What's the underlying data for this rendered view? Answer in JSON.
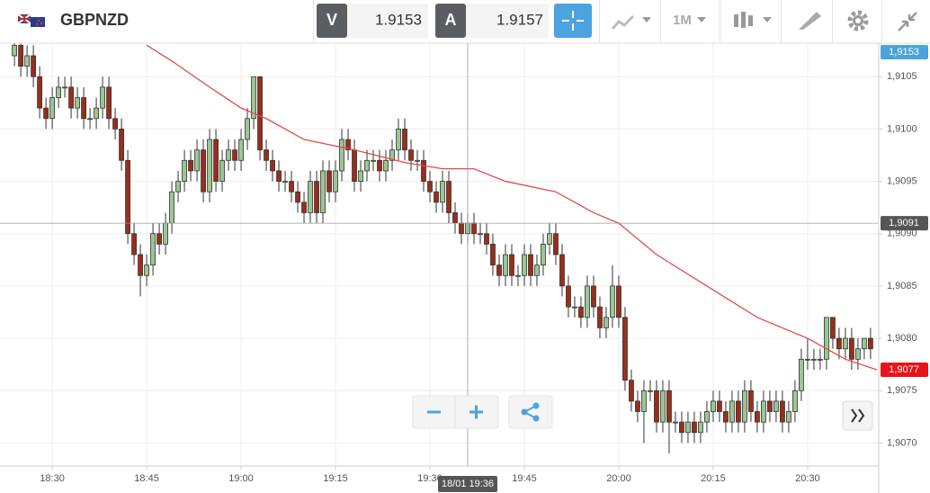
{
  "header": {
    "symbol": "GBPNZD",
    "bid_label": "V",
    "bid": "1.9153",
    "ask_label": "A",
    "ask": "1.9157",
    "timeframe": "1M"
  },
  "chart_data": {
    "type": "candlestick",
    "up_color": "#9cc594",
    "down_color": "#9a2e1c",
    "x": [
      1104,
      1105,
      1106,
      1107,
      1108,
      1109,
      1110,
      1111,
      1112,
      1113,
      1114,
      1115,
      1116,
      1117,
      1118,
      1119,
      1120,
      1121,
      1122,
      1123,
      1124,
      1125,
      1126,
      1127,
      1128,
      1129,
      1130,
      1131,
      1132,
      1133,
      1134,
      1135,
      1136,
      1137,
      1138,
      1139,
      1140,
      1141,
      1142,
      1143,
      1144,
      1145,
      1146,
      1147,
      1148,
      1149,
      1150,
      1151,
      1152,
      1153,
      1154,
      1155,
      1156,
      1157,
      1158,
      1159,
      1160,
      1161,
      1162,
      1163,
      1164,
      1165,
      1166,
      1167,
      1168,
      1169,
      1170,
      1171,
      1172,
      1173,
      1174,
      1175,
      1176,
      1177,
      1178,
      1179,
      1180,
      1181,
      1182,
      1183,
      1184,
      1185,
      1186,
      1187,
      1188,
      1189,
      1190,
      1191,
      1192,
      1193,
      1194,
      1195,
      1196,
      1197,
      1198,
      1199,
      1200,
      1201,
      1202,
      1203,
      1204,
      1205,
      1206,
      1207,
      1208,
      1209,
      1210,
      1211,
      1212,
      1213,
      1214,
      1215,
      1216,
      1217,
      1218,
      1219,
      1220,
      1221,
      1222,
      1223,
      1224,
      1225,
      1226,
      1227,
      1228,
      1229,
      1230,
      1231,
      1232,
      1233,
      1234,
      1235,
      1236,
      1237,
      1238,
      1239,
      1240
    ],
    "candles": [
      [
        1.9107,
        1.9109,
        1.9106,
        1.9108
      ],
      [
        1.9108,
        1.9109,
        1.9105,
        1.9106
      ],
      [
        1.9106,
        1.9108,
        1.9105,
        1.9107
      ],
      [
        1.9107,
        1.9108,
        1.9104,
        1.9105
      ],
      [
        1.9105,
        1.9106,
        1.9101,
        1.9102
      ],
      [
        1.9102,
        1.9103,
        1.91,
        1.9101
      ],
      [
        1.9101,
        1.9104,
        1.91,
        1.9103
      ],
      [
        1.9103,
        1.9105,
        1.9102,
        1.9104
      ],
      [
        1.9104,
        1.9105,
        1.9103,
        1.9104
      ],
      [
        1.9104,
        1.9105,
        1.9101,
        1.9102
      ],
      [
        1.9102,
        1.9104,
        1.9101,
        1.9103
      ],
      [
        1.9103,
        1.9104,
        1.91,
        1.9101
      ],
      [
        1.9101,
        1.9102,
        1.91,
        1.9101
      ],
      [
        1.9101,
        1.9103,
        1.91,
        1.9102
      ],
      [
        1.9102,
        1.9105,
        1.9101,
        1.9104
      ],
      [
        1.9104,
        1.9105,
        1.91,
        1.9101
      ],
      [
        1.9101,
        1.9102,
        1.9099,
        1.91
      ],
      [
        1.91,
        1.9101,
        1.9096,
        1.9097
      ],
      [
        1.9097,
        1.9098,
        1.9089,
        1.909
      ],
      [
        1.909,
        1.9091,
        1.9087,
        1.9088
      ],
      [
        1.9088,
        1.9089,
        1.9084,
        1.9086
      ],
      [
        1.9086,
        1.9088,
        1.9085,
        1.9087
      ],
      [
        1.9087,
        1.9091,
        1.9086,
        1.909
      ],
      [
        1.909,
        1.9091,
        1.9088,
        1.9089
      ],
      [
        1.9089,
        1.9092,
        1.9088,
        1.9091
      ],
      [
        1.9091,
        1.9095,
        1.909,
        1.9094
      ],
      [
        1.9094,
        1.9096,
        1.9093,
        1.9095
      ],
      [
        1.9095,
        1.9098,
        1.9094,
        1.9097
      ],
      [
        1.9097,
        1.9098,
        1.9095,
        1.9096
      ],
      [
        1.9096,
        1.9099,
        1.9095,
        1.9098
      ],
      [
        1.9098,
        1.9099,
        1.9093,
        1.9094
      ],
      [
        1.9094,
        1.91,
        1.9093,
        1.9099
      ],
      [
        1.9099,
        1.91,
        1.9094,
        1.9095
      ],
      [
        1.9095,
        1.9098,
        1.9094,
        1.9097
      ],
      [
        1.9097,
        1.9099,
        1.9096,
        1.9098
      ],
      [
        1.9098,
        1.9099,
        1.9096,
        1.9097
      ],
      [
        1.9097,
        1.91,
        1.9096,
        1.9099
      ],
      [
        1.9099,
        1.9102,
        1.9098,
        1.9101
      ],
      [
        1.9101,
        1.9105,
        1.91,
        1.9105
      ],
      [
        1.9105,
        1.9105,
        1.9097,
        1.9098
      ],
      [
        1.9098,
        1.9099,
        1.9096,
        1.9097
      ],
      [
        1.9097,
        1.9098,
        1.9095,
        1.9096
      ],
      [
        1.9096,
        1.9097,
        1.9094,
        1.9095
      ],
      [
        1.9095,
        1.9096,
        1.9094,
        1.9095
      ],
      [
        1.9095,
        1.9096,
        1.9093,
        1.9094
      ],
      [
        1.9094,
        1.9095,
        1.9092,
        1.9093
      ],
      [
        1.9093,
        1.9094,
        1.9091,
        1.9092
      ],
      [
        1.9092,
        1.9096,
        1.9091,
        1.9095
      ],
      [
        1.9095,
        1.9096,
        1.9091,
        1.9092
      ],
      [
        1.9092,
        1.9097,
        1.9091,
        1.9096
      ],
      [
        1.9096,
        1.9097,
        1.9093,
        1.9094
      ],
      [
        1.9094,
        1.9097,
        1.9093,
        1.9096
      ],
      [
        1.9096,
        1.91,
        1.9095,
        1.9099
      ],
      [
        1.9099,
        1.91,
        1.9097,
        1.9098
      ],
      [
        1.9098,
        1.9099,
        1.9094,
        1.9095
      ],
      [
        1.9095,
        1.9097,
        1.9094,
        1.9096
      ],
      [
        1.9096,
        1.9098,
        1.9095,
        1.9097
      ],
      [
        1.9097,
        1.9098,
        1.9096,
        1.9097
      ],
      [
        1.9097,
        1.9098,
        1.9095,
        1.9096
      ],
      [
        1.9096,
        1.9098,
        1.9095,
        1.9097
      ],
      [
        1.9097,
        1.9099,
        1.9096,
        1.9098
      ],
      [
        1.9098,
        1.9101,
        1.9097,
        1.91
      ],
      [
        1.91,
        1.9101,
        1.9097,
        1.9098
      ],
      [
        1.9098,
        1.9099,
        1.9096,
        1.9097
      ],
      [
        1.9097,
        1.9098,
        1.9096,
        1.9097
      ],
      [
        1.9097,
        1.9098,
        1.9094,
        1.9095
      ],
      [
        1.9095,
        1.9096,
        1.9093,
        1.9094
      ],
      [
        1.9094,
        1.9095,
        1.9092,
        1.9093
      ],
      [
        1.9093,
        1.9096,
        1.9092,
        1.9095
      ],
      [
        1.9095,
        1.9096,
        1.9091,
        1.9092
      ],
      [
        1.9092,
        1.9093,
        1.909,
        1.9091
      ],
      [
        1.9091,
        1.9092,
        1.9089,
        1.909
      ],
      [
        1.909,
        1.9092,
        1.9089,
        1.9091
      ],
      [
        1.9091,
        1.9092,
        1.9089,
        1.909
      ],
      [
        1.909,
        1.9091,
        1.9089,
        1.909
      ],
      [
        1.909,
        1.9091,
        1.9088,
        1.9089
      ],
      [
        1.9089,
        1.909,
        1.9086,
        1.9087
      ],
      [
        1.9087,
        1.9088,
        1.9085,
        1.9086
      ],
      [
        1.9086,
        1.9089,
        1.9085,
        1.9088
      ],
      [
        1.9088,
        1.9089,
        1.9085,
        1.9086
      ],
      [
        1.9086,
        1.9087,
        1.9085,
        1.9086
      ],
      [
        1.9086,
        1.9089,
        1.9085,
        1.9088
      ],
      [
        1.9088,
        1.9089,
        1.9085,
        1.9086
      ],
      [
        1.9086,
        1.9088,
        1.9085,
        1.9087
      ],
      [
        1.9087,
        1.909,
        1.9086,
        1.9089
      ],
      [
        1.9089,
        1.9091,
        1.9088,
        1.909
      ],
      [
        1.909,
        1.9091,
        1.9087,
        1.9088
      ],
      [
        1.9088,
        1.9089,
        1.9084,
        1.9085
      ],
      [
        1.9085,
        1.9086,
        1.9082,
        1.9083
      ],
      [
        1.9083,
        1.9084,
        1.9082,
        1.9083
      ],
      [
        1.9083,
        1.9084,
        1.9081,
        1.9082
      ],
      [
        1.9082,
        1.9086,
        1.9081,
        1.9085
      ],
      [
        1.9085,
        1.9086,
        1.9082,
        1.9083
      ],
      [
        1.9083,
        1.9084,
        1.908,
        1.9081
      ],
      [
        1.9081,
        1.9083,
        1.908,
        1.9082
      ],
      [
        1.9082,
        1.9087,
        1.9081,
        1.9085
      ],
      [
        1.9085,
        1.9086,
        1.9081,
        1.9082
      ],
      [
        1.9082,
        1.9083,
        1.9075,
        1.9076
      ],
      [
        1.9076,
        1.9077,
        1.9073,
        1.9074
      ],
      [
        1.9074,
        1.9075,
        1.9072,
        1.9073
      ],
      [
        1.9073,
        1.9076,
        1.907,
        1.9075
      ],
      [
        1.9075,
        1.9076,
        1.9074,
        1.9075
      ],
      [
        1.9075,
        1.9076,
        1.9071,
        1.9072
      ],
      [
        1.9072,
        1.9076,
        1.9071,
        1.9075
      ],
      [
        1.9075,
        1.9076,
        1.9069,
        1.9072
      ],
      [
        1.9072,
        1.9073,
        1.9071,
        1.9072
      ],
      [
        1.9072,
        1.9073,
        1.907,
        1.9071
      ],
      [
        1.9071,
        1.9073,
        1.907,
        1.9072
      ],
      [
        1.9072,
        1.9073,
        1.907,
        1.9071
      ],
      [
        1.9071,
        1.9073,
        1.907,
        1.9072
      ],
      [
        1.9072,
        1.9074,
        1.9071,
        1.9073
      ],
      [
        1.9073,
        1.9075,
        1.9072,
        1.9074
      ],
      [
        1.9074,
        1.9075,
        1.9072,
        1.9073
      ],
      [
        1.9073,
        1.9074,
        1.9071,
        1.9072
      ],
      [
        1.9072,
        1.9075,
        1.9071,
        1.9074
      ],
      [
        1.9074,
        1.9075,
        1.9071,
        1.9072
      ],
      [
        1.9072,
        1.9076,
        1.9071,
        1.9075
      ],
      [
        1.9075,
        1.9076,
        1.9072,
        1.9073
      ],
      [
        1.9073,
        1.9074,
        1.9071,
        1.9072
      ],
      [
        1.9072,
        1.9075,
        1.9071,
        1.9074
      ],
      [
        1.9074,
        1.9075,
        1.9072,
        1.9073
      ],
      [
        1.9073,
        1.9075,
        1.9072,
        1.9074
      ],
      [
        1.9074,
        1.9075,
        1.9071,
        1.9072
      ],
      [
        1.9072,
        1.9074,
        1.9071,
        1.9073
      ],
      [
        1.9073,
        1.9076,
        1.9072,
        1.9075
      ],
      [
        1.9075,
        1.9079,
        1.9074,
        1.9078
      ],
      [
        1.9078,
        1.908,
        1.9077,
        1.9078
      ],
      [
        1.9078,
        1.9079,
        1.9077,
        1.9078
      ],
      [
        1.9078,
        1.9079,
        1.9077,
        1.9078
      ],
      [
        1.9078,
        1.9082,
        1.9077,
        1.9082
      ],
      [
        1.9082,
        1.9082,
        1.9079,
        1.908
      ],
      [
        1.908,
        1.9081,
        1.9078,
        1.9079
      ],
      [
        1.9079,
        1.9081,
        1.9078,
        1.908
      ],
      [
        1.908,
        1.9081,
        1.9077,
        1.9078
      ],
      [
        1.9078,
        1.908,
        1.9077,
        1.9079
      ],
      [
        1.9079,
        1.908,
        1.9078,
        1.908
      ],
      [
        1.908,
        1.9081,
        1.9078,
        1.9079
      ]
    ],
    "ma": {
      "color": "#e04b4b",
      "x": [
        1125,
        1129,
        1135,
        1140,
        1144,
        1150,
        1158,
        1166,
        1172,
        1177,
        1182,
        1190,
        1196,
        1200,
        1206,
        1214,
        1222,
        1230,
        1236,
        1241
      ],
      "values": [
        1.9108,
        1.91065,
        1.9104,
        1.9102,
        1.9101,
        1.9099,
        1.9098,
        1.90968,
        1.90962,
        1.90962,
        1.9095,
        1.9094,
        1.9092,
        1.9091,
        1.9088,
        1.9085,
        1.9082,
        1.908,
        1.9078,
        1.9077
      ]
    },
    "xlim": [
      1101.7,
      1241.3
    ],
    "xticks": [
      {
        "value": 1110,
        "label": "18:30"
      },
      {
        "value": 1125,
        "label": "18:45"
      },
      {
        "value": 1140,
        "label": "19:00"
      },
      {
        "value": 1155,
        "label": "19:15"
      },
      {
        "value": 1170,
        "label": "19:30"
      },
      {
        "value": 1185,
        "label": "19:45"
      },
      {
        "value": 1200,
        "label": "20:00"
      },
      {
        "value": 1215,
        "label": "20:15"
      },
      {
        "value": 1230,
        "label": "20:30"
      }
    ],
    "ylim": [
      1.90678,
      1.91082
    ],
    "yticks": [
      {
        "value": 1.907,
        "label": "1,9070"
      },
      {
        "value": 1.9075,
        "label": "1,9075"
      },
      {
        "value": 1.908,
        "label": "1,9080"
      },
      {
        "value": 1.9085,
        "label": "1,9085"
      },
      {
        "value": 1.909,
        "label": "1,9090"
      },
      {
        "value": 1.9095,
        "label": "1,9095"
      },
      {
        "value": 1.91,
        "label": "1,9100"
      },
      {
        "value": 1.9105,
        "label": "1,9105"
      }
    ],
    "grid": true,
    "price_labels": [
      {
        "value": 1.9153,
        "label": "1,9153",
        "color": "#4ba3d9"
      },
      {
        "value": 1.9077,
        "label": "1,9077",
        "color": "#e8141a"
      }
    ],
    "crosshair": {
      "x": {
        "value": 1176,
        "label": "18/01 19:36"
      },
      "y": {
        "value": 1.9091,
        "label": "1,9091"
      }
    }
  }
}
